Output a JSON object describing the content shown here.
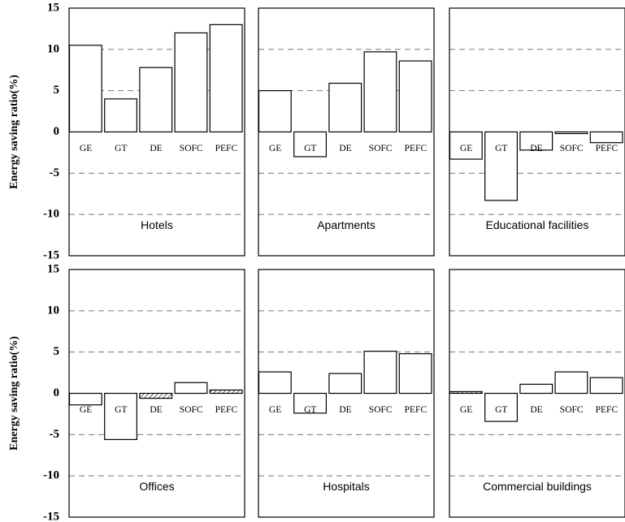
{
  "chart_data": [
    {
      "type": "bar",
      "title": "Hotels",
      "ylabel": "Energy saving ratio(%)",
      "categories": [
        "GE",
        "GT",
        "DE",
        "SOFC",
        "PEFC"
      ],
      "values": [
        10.5,
        4,
        7.8,
        12,
        13
      ],
      "hatched": [
        false,
        false,
        false,
        false,
        false
      ],
      "color": "#ffffff",
      "ylim": [
        -15,
        15
      ],
      "yticks": [
        -15,
        -10,
        -5,
        0,
        5,
        10,
        15
      ],
      "grid": true
    },
    {
      "type": "bar",
      "title": "Apartments",
      "categories": [
        "GE",
        "GT",
        "DE",
        "SOFC",
        "PEFC"
      ],
      "values": [
        5,
        -3,
        5.9,
        9.7,
        8.6
      ],
      "hatched": [
        false,
        false,
        false,
        false,
        false
      ],
      "color": "#ffffff",
      "ylim": [
        -15,
        15
      ],
      "yticks": [
        -15,
        -10,
        -5,
        0,
        5,
        10,
        15
      ],
      "grid": true
    },
    {
      "type": "bar",
      "title": "Educational facilities",
      "categories": [
        "GE",
        "GT",
        "DE",
        "SOFC",
        "PEFC"
      ],
      "values": [
        -3.3,
        -8.3,
        -2.2,
        -0.2,
        -1.3
      ],
      "hatched": [
        false,
        false,
        false,
        false,
        false
      ],
      "color": "#ffffff",
      "ylim": [
        -15,
        15
      ],
      "yticks": [
        -15,
        -10,
        -5,
        0,
        5,
        10,
        15
      ],
      "grid": true
    },
    {
      "type": "bar",
      "title": "Offices",
      "ylabel": "Energy saving ratio(%)",
      "categories": [
        "GE",
        "GT",
        "DE",
        "SOFC",
        "PEFC"
      ],
      "values": [
        -1.4,
        -5.6,
        -0.6,
        1.3,
        0.4
      ],
      "hatched": [
        false,
        false,
        true,
        false,
        true
      ],
      "color": "#ffffff",
      "ylim": [
        -15,
        15
      ],
      "yticks": [
        -15,
        -10,
        -5,
        0,
        5,
        10,
        15
      ],
      "grid": true
    },
    {
      "type": "bar",
      "title": "Hospitals",
      "categories": [
        "GE",
        "GT",
        "DE",
        "SOFC",
        "PEFC"
      ],
      "values": [
        2.6,
        -2.4,
        2.4,
        5.1,
        4.8
      ],
      "hatched": [
        false,
        false,
        false,
        false,
        false
      ],
      "color": "#ffffff",
      "ylim": [
        -15,
        15
      ],
      "yticks": [
        -15,
        -10,
        -5,
        0,
        5,
        10,
        15
      ],
      "grid": true
    },
    {
      "type": "bar",
      "title": "Commercial buildings",
      "categories": [
        "GE",
        "GT",
        "DE",
        "SOFC",
        "PEFC"
      ],
      "values": [
        0.2,
        -3.4,
        1.1,
        2.6,
        1.9
      ],
      "hatched": [
        true,
        false,
        false,
        false,
        false
      ],
      "color": "#ffffff",
      "ylim": [
        -15,
        15
      ],
      "yticks": [
        -15,
        -10,
        -5,
        0,
        5,
        10,
        15
      ],
      "grid": true
    }
  ]
}
